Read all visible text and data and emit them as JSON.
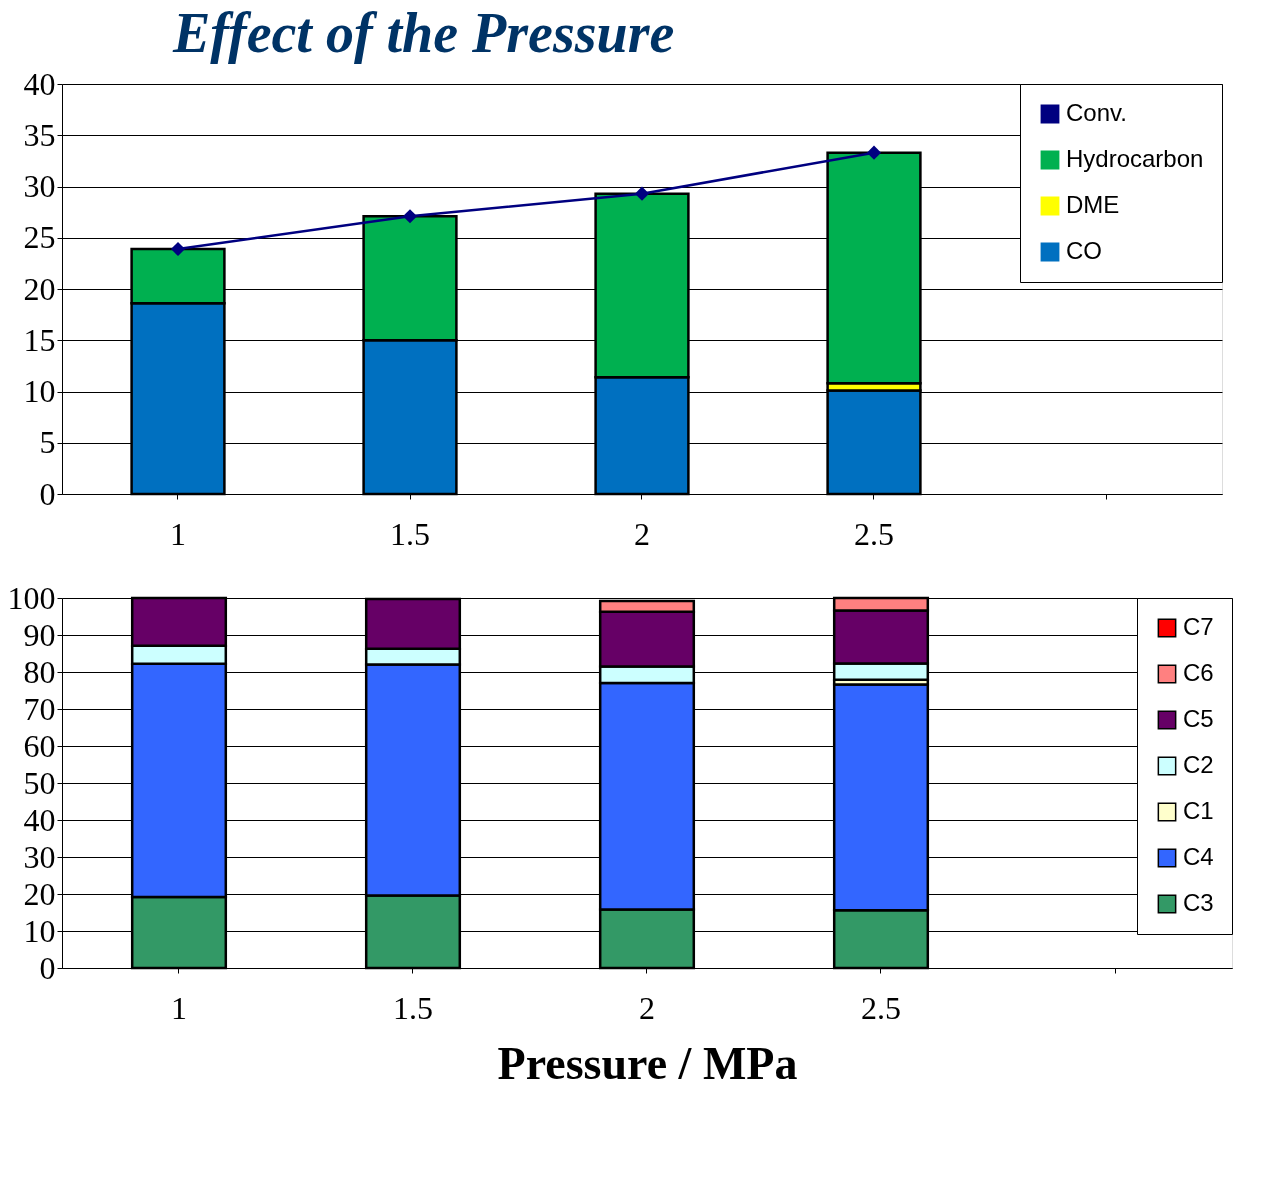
{
  "chart_data": [
    {
      "type": "bar",
      "title": "Effect of the Pressure",
      "stacked": true,
      "categories": [
        "1",
        "1.5",
        "2",
        "2.5",
        null
      ],
      "series": [
        {
          "name": "CO",
          "color": "#0070c0",
          "values": [
            18.6,
            15.0,
            11.4,
            10.1,
            null
          ]
        },
        {
          "name": "DME",
          "color": "#ffff00",
          "values": [
            null,
            null,
            null,
            0.7,
            null
          ]
        },
        {
          "name": "Hydrocarbon",
          "color": "#00b050",
          "values": [
            5.3,
            12.1,
            17.9,
            22.5,
            null
          ]
        },
        {
          "name": "Conv.",
          "type": "line",
          "color": "#000080",
          "marker": "diamond",
          "values": [
            23.9,
            27.1,
            29.3,
            33.3,
            null
          ]
        }
      ],
      "ylim": [
        0,
        40
      ],
      "yticks": [
        0,
        5,
        10,
        15,
        20,
        25,
        30,
        35,
        40
      ],
      "grid": "y",
      "legend": "top right"
    },
    {
      "type": "bar",
      "stacked": true,
      "xlabel": "Pressure / MPa",
      "categories": [
        "1",
        "1.5",
        "2",
        "2.5",
        null
      ],
      "series": [
        {
          "name": "C3",
          "color": "#339966",
          "values": [
            19.2,
            19.6,
            15.8,
            15.6,
            null
          ]
        },
        {
          "name": "C4",
          "color": "#3366ff",
          "values": [
            63.0,
            62.4,
            61.2,
            61.0,
            null
          ]
        },
        {
          "name": "C1",
          "color": "#ffffcc",
          "values": [
            null,
            null,
            null,
            1.3,
            null
          ]
        },
        {
          "name": "C2",
          "color": "#ccffff",
          "values": [
            4.9,
            4.3,
            4.5,
            4.4,
            null
          ]
        },
        {
          "name": "C5",
          "color": "#660066",
          "values": [
            12.9,
            13.4,
            14.8,
            14.3,
            null
          ]
        },
        {
          "name": "C6",
          "color": "#ff8080",
          "values": [
            null,
            null,
            2.9,
            3.4,
            null
          ]
        },
        {
          "name": "C7",
          "color": "#ff0000",
          "values": [
            null,
            null,
            null,
            null,
            null
          ]
        }
      ],
      "ylim": [
        0,
        100
      ],
      "yticks": [
        0,
        10,
        20,
        30,
        40,
        50,
        60,
        70,
        80,
        90,
        100
      ],
      "grid": "y",
      "legend": "top right"
    }
  ]
}
